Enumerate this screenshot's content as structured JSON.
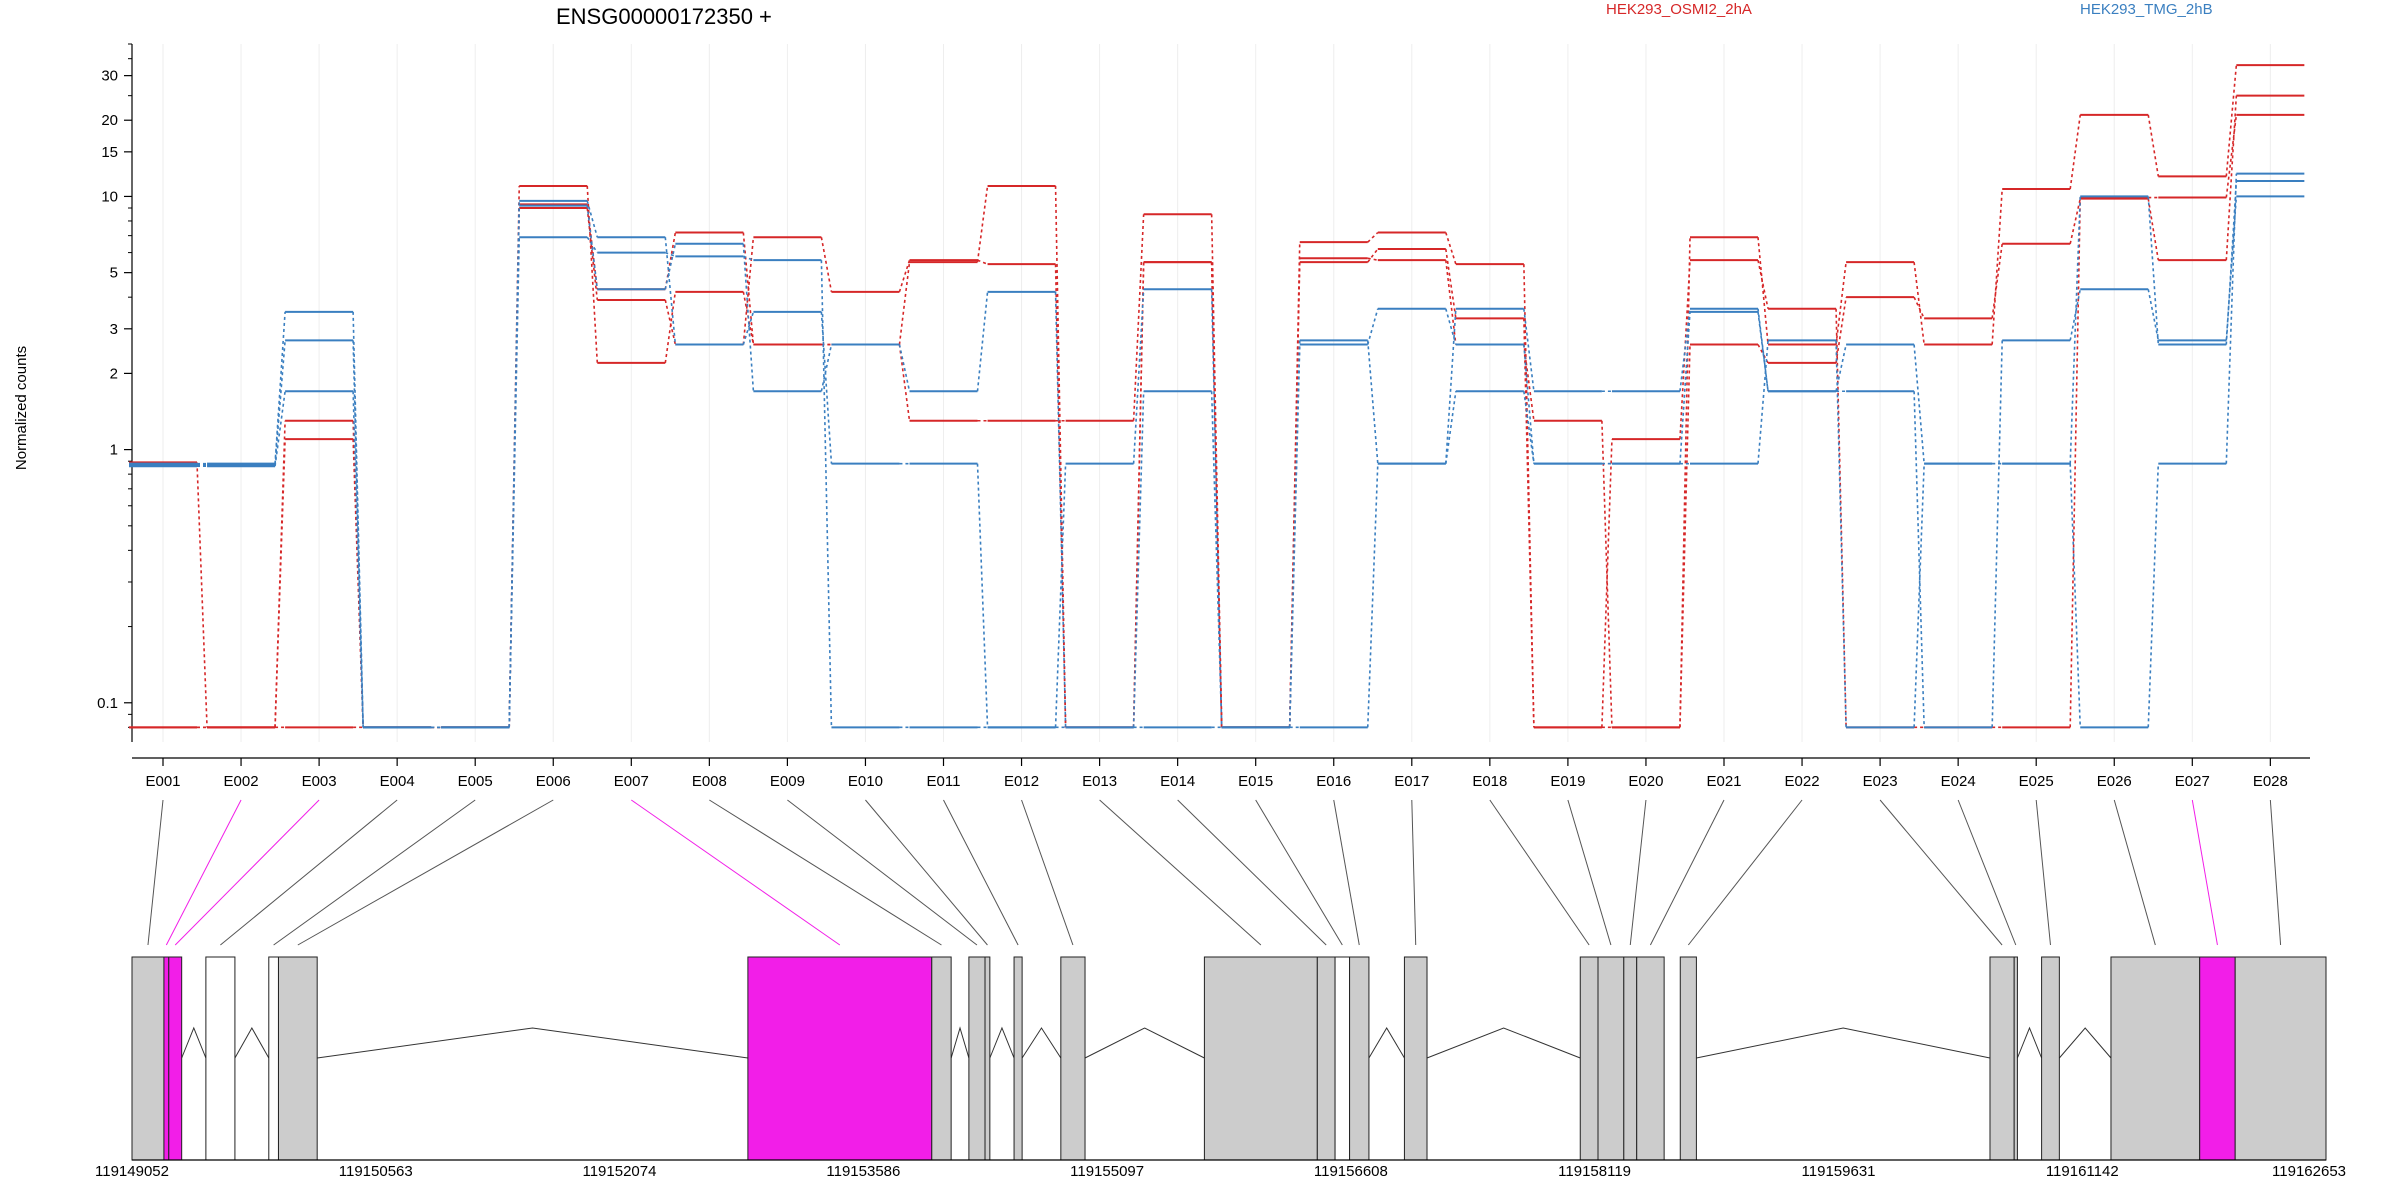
{
  "chart_data": {
    "type": "line",
    "title": "ENSG00000172350 +",
    "ylabel": "Normalized counts",
    "y_scale": "log",
    "ylim": [
      0.07,
      40
    ],
    "y_ticks": [
      "0.1",
      "1",
      "2",
      "3",
      "5",
      "10",
      "15",
      "20",
      "30"
    ],
    "categories": [
      "E001",
      "E002",
      "E003",
      "E004",
      "E005",
      "E006",
      "E007",
      "E008",
      "E009",
      "E010",
      "E011",
      "E012",
      "E013",
      "E014",
      "E015",
      "E016",
      "E017",
      "E018",
      "E019",
      "E020",
      "E021",
      "E022",
      "E023",
      "E024",
      "E025",
      "E026",
      "E027",
      "E028"
    ],
    "legend": [
      {
        "label": "HEK293_OSMI2_2hA",
        "color": "#d62728"
      },
      {
        "label": "HEK293_TMG_2hB",
        "color": "#3a7fc0"
      }
    ],
    "colors": {
      "treated": "#d62728",
      "control": "#3a7fc0",
      "highlight": "#f21ee8",
      "exon": "#cccccc"
    },
    "series": [
      {
        "group": "treated",
        "values": [
          0.08,
          0.08,
          0.08,
          0.08,
          0.08,
          11,
          2.2,
          4.2,
          2.6,
          2.6,
          5.5,
          11,
          0.08,
          5.5,
          0.08,
          6.6,
          7.2,
          5.4,
          0.08,
          0.08,
          6.9,
          2.6,
          5.5,
          2.6,
          10.7,
          21,
          12,
          33
        ]
      },
      {
        "group": "treated",
        "values": [
          0.08,
          0.08,
          1.3,
          0.08,
          0.08,
          9.3,
          4.3,
          7.2,
          2.6,
          2.6,
          1.3,
          1.3,
          1.3,
          8.5,
          0.08,
          5.7,
          5.6,
          2.6,
          1.3,
          0.08,
          2.6,
          2.2,
          4.0,
          3.3,
          6.5,
          9.8,
          5.6,
          25
        ]
      },
      {
        "group": "treated",
        "values": [
          0.89,
          0.08,
          1.1,
          0.08,
          0.08,
          9.0,
          3.9,
          2.6,
          6.9,
          4.2,
          5.6,
          5.4,
          0.08,
          5.5,
          0.08,
          5.5,
          6.2,
          3.3,
          0.08,
          1.1,
          5.6,
          3.6,
          0.08,
          0.08,
          0.08,
          9.9,
          9.9,
          21
        ]
      },
      {
        "group": "control",
        "values": [
          0.88,
          0.88,
          3.5,
          0.08,
          0.08,
          9.6,
          6.9,
          2.6,
          3.5,
          0.88,
          0.88,
          0.08,
          0.88,
          4.3,
          0.08,
          2.6,
          3.6,
          2.6,
          0.88,
          0.88,
          3.5,
          1.7,
          2.6,
          0.88,
          0.88,
          10,
          2.6,
          11.5
        ]
      },
      {
        "group": "control",
        "values": [
          0.87,
          0.87,
          2.7,
          0.08,
          0.08,
          9.2,
          4.3,
          6.5,
          1.7,
          2.6,
          1.7,
          4.2,
          0.08,
          1.7,
          0.08,
          2.7,
          0.88,
          3.6,
          1.7,
          1.7,
          3.6,
          1.7,
          1.7,
          0.08,
          2.7,
          4.3,
          2.7,
          10
        ]
      },
      {
        "group": "control",
        "values": [
          0.86,
          0.86,
          1.7,
          0.08,
          0.08,
          6.9,
          6.0,
          5.8,
          5.6,
          0.08,
          0.08,
          0.08,
          0.08,
          0.08,
          0.08,
          0.08,
          0.88,
          1.7,
          0.88,
          0.88,
          0.88,
          2.7,
          0.08,
          0.88,
          0.88,
          0.08,
          0.88,
          12.3
        ]
      }
    ],
    "gene_model": {
      "coord_ticks": [
        "119149052",
        "119150563",
        "119152074",
        "119153586",
        "119155097",
        "119156608",
        "119158119",
        "119159631",
        "119161142",
        "119162653"
      ],
      "coord_range": [
        119149052,
        119162653
      ],
      "exons": [
        {
          "id": "E001",
          "start": 119149052,
          "end": 119149250,
          "highlight": false
        },
        {
          "id": "E002",
          "start": 119149250,
          "end": 119149280,
          "highlight": true
        },
        {
          "id": "E003",
          "start": 119149280,
          "end": 119149360,
          "highlight": true
        },
        {
          "id": "E004",
          "start": 119149510,
          "end": 119149690,
          "highlight": false,
          "empty": true
        },
        {
          "id": "E005",
          "start": 119149900,
          "end": 119149960,
          "highlight": false,
          "empty": true
        },
        {
          "id": "E006",
          "start": 119149960,
          "end": 119150200,
          "highlight": false
        },
        {
          "id": "E007",
          "start": 119152870,
          "end": 119154010,
          "highlight": true
        },
        {
          "id": "E008",
          "start": 119154010,
          "end": 119154130,
          "highlight": false
        },
        {
          "id": "E009",
          "start": 119154240,
          "end": 119154340,
          "highlight": false
        },
        {
          "id": "E010",
          "start": 119154340,
          "end": 119154370,
          "highlight": false
        },
        {
          "id": "E011",
          "start": 119154520,
          "end": 119154570,
          "highlight": false
        },
        {
          "id": "E012",
          "start": 119154810,
          "end": 119154960,
          "highlight": false
        },
        {
          "id": "E013",
          "start": 119155700,
          "end": 119156400,
          "highlight": false
        },
        {
          "id": "E014",
          "start": 119156400,
          "end": 119156510,
          "highlight": false
        },
        {
          "id": "E015",
          "start": 119156510,
          "end": 119156600,
          "highlight": false,
          "empty": true
        },
        {
          "id": "E016",
          "start": 119156600,
          "end": 119156720,
          "highlight": false
        },
        {
          "id": "E017",
          "start": 119156940,
          "end": 119157080,
          "highlight": false
        },
        {
          "id": "E018",
          "start": 119158030,
          "end": 119158140,
          "highlight": false
        },
        {
          "id": "E019",
          "start": 119158140,
          "end": 119158300,
          "highlight": false
        },
        {
          "id": "E020",
          "start": 119158300,
          "end": 119158380,
          "highlight": false
        },
        {
          "id": "E021",
          "start": 119158380,
          "end": 119158550,
          "highlight": false
        },
        {
          "id": "E022",
          "start": 119158650,
          "end": 119158750,
          "highlight": false
        },
        {
          "id": "E023",
          "start": 119160570,
          "end": 119160720,
          "highlight": false
        },
        {
          "id": "E024",
          "start": 119160720,
          "end": 119160740,
          "highlight": false
        },
        {
          "id": "E025",
          "start": 119160890,
          "end": 119161000,
          "highlight": false
        },
        {
          "id": "E026",
          "start": 119161320,
          "end": 119161870,
          "highlight": false
        },
        {
          "id": "E027",
          "start": 119161870,
          "end": 119162090,
          "highlight": true
        },
        {
          "id": "E028",
          "start": 119162090,
          "end": 119162653,
          "highlight": false
        }
      ],
      "introns": [
        [
          119149360,
          119149510
        ],
        [
          119149690,
          119149900
        ],
        [
          119150200,
          119152870
        ],
        [
          119154130,
          119154240
        ],
        [
          119154370,
          119154520
        ],
        [
          119154570,
          119154810
        ],
        [
          119154960,
          119155700
        ],
        [
          119156720,
          119156940
        ],
        [
          119157080,
          119158030
        ],
        [
          119158750,
          119160570
        ],
        [
          119160740,
          119160890
        ],
        [
          119161000,
          119161320
        ]
      ]
    }
  }
}
